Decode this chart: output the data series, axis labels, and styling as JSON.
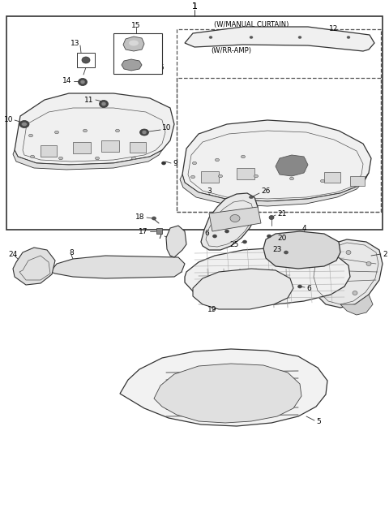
{
  "bg_color": "#ffffff",
  "line_color": "#333333",
  "fig_width": 4.8,
  "fig_height": 6.53,
  "dpi": 100
}
